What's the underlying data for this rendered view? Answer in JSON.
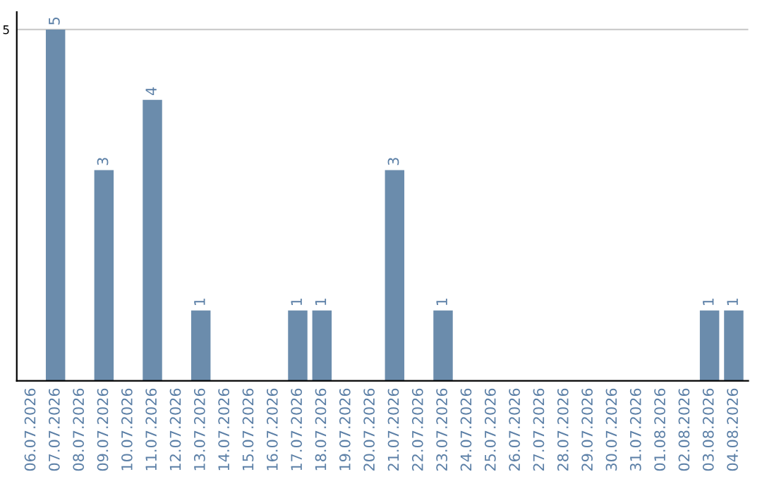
{
  "chart_data": {
    "type": "bar",
    "categories": [
      "06.07.2026",
      "07.07.2026",
      "08.07.2026",
      "09.07.2026",
      "10.07.2026",
      "11.07.2026",
      "12.07.2026",
      "13.07.2026",
      "14.07.2026",
      "15.07.2026",
      "16.07.2026",
      "17.07.2026",
      "18.07.2026",
      "19.07.2026",
      "20.07.2026",
      "21.07.2026",
      "22.07.2026",
      "23.07.2026",
      "24.07.2026",
      "25.07.2026",
      "26.07.2026",
      "27.07.2026",
      "28.07.2026",
      "29.07.2026",
      "30.07.2026",
      "31.07.2026",
      "01.08.2026",
      "02.08.2026",
      "03.08.2026",
      "04.08.2026"
    ],
    "values": [
      0,
      5,
      0,
      3,
      0,
      4,
      0,
      1,
      0,
      0,
      0,
      1,
      1,
      0,
      0,
      3,
      0,
      1,
      0,
      0,
      0,
      0,
      0,
      0,
      0,
      0,
      0,
      0,
      1,
      1
    ],
    "color": "#6b8cac",
    "ylim": [
      0,
      5.25
    ],
    "yticks": [
      5
    ],
    "grid": "y",
    "value_labels": [
      null,
      "5",
      null,
      "3",
      null,
      "4",
      null,
      "1",
      null,
      null,
      null,
      "1",
      "1",
      null,
      null,
      "3",
      null,
      "1",
      null,
      null,
      null,
      null,
      null,
      null,
      null,
      null,
      null,
      null,
      "1",
      "1"
    ]
  }
}
